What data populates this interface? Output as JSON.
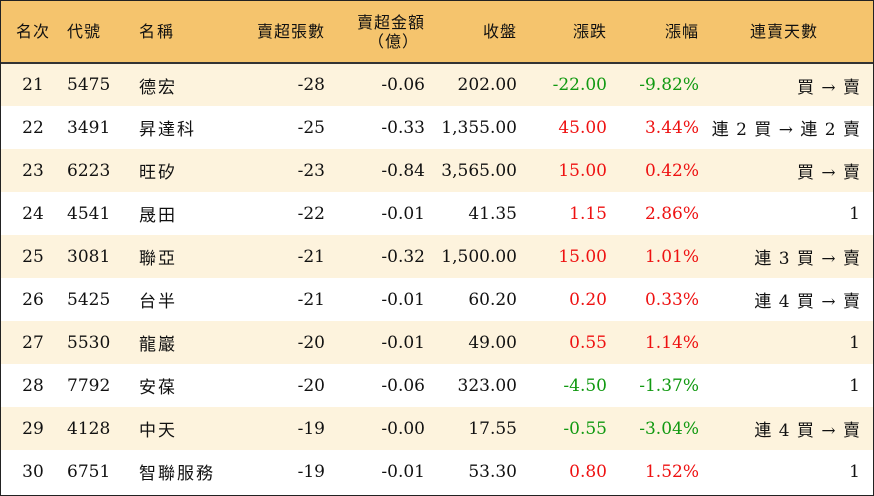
{
  "colors": {
    "header_bg": "#f5c46d",
    "row_alt_bg": "#fdf3dd",
    "up": "#ee1111",
    "down": "#119911",
    "text": "#111111"
  },
  "headers": {
    "rank": "名次",
    "code": "代號",
    "name": "名稱",
    "net_sell_lots": "賣超張數",
    "net_sell_amount_line1": "賣超金額",
    "net_sell_amount_line2": "（億）",
    "close": "收盤",
    "change": "漲跌",
    "change_pct": "漲幅",
    "consecutive": "連賣天數"
  },
  "rows": [
    {
      "rank": "21",
      "code": "5475",
      "name": "德宏",
      "lots": "-28",
      "amount": "-0.06",
      "close": "202.00",
      "change": "-22.00",
      "pct": "-9.82%",
      "dir": "down",
      "consecutive": "買 → 賣"
    },
    {
      "rank": "22",
      "code": "3491",
      "name": "昇達科",
      "lots": "-25",
      "amount": "-0.33",
      "close": "1,355.00",
      "change": "45.00",
      "pct": "3.44%",
      "dir": "up",
      "consecutive": "連 2 買 → 連 2 賣"
    },
    {
      "rank": "23",
      "code": "6223",
      "name": "旺矽",
      "lots": "-23",
      "amount": "-0.84",
      "close": "3,565.00",
      "change": "15.00",
      "pct": "0.42%",
      "dir": "up",
      "consecutive": "買 → 賣"
    },
    {
      "rank": "24",
      "code": "4541",
      "name": "晟田",
      "lots": "-22",
      "amount": "-0.01",
      "close": "41.35",
      "change": "1.15",
      "pct": "2.86%",
      "dir": "up",
      "consecutive": "1"
    },
    {
      "rank": "25",
      "code": "3081",
      "name": "聯亞",
      "lots": "-21",
      "amount": "-0.32",
      "close": "1,500.00",
      "change": "15.00",
      "pct": "1.01%",
      "dir": "up",
      "consecutive": "連 3 買 → 賣"
    },
    {
      "rank": "26",
      "code": "5425",
      "name": "台半",
      "lots": "-21",
      "amount": "-0.01",
      "close": "60.20",
      "change": "0.20",
      "pct": "0.33%",
      "dir": "up",
      "consecutive": "連 4 買 → 賣"
    },
    {
      "rank": "27",
      "code": "5530",
      "name": "龍巖",
      "lots": "-20",
      "amount": "-0.01",
      "close": "49.00",
      "change": "0.55",
      "pct": "1.14%",
      "dir": "up",
      "consecutive": "1"
    },
    {
      "rank": "28",
      "code": "7792",
      "name": "安葆",
      "lots": "-20",
      "amount": "-0.06",
      "close": "323.00",
      "change": "-4.50",
      "pct": "-1.37%",
      "dir": "down",
      "consecutive": "1"
    },
    {
      "rank": "29",
      "code": "4128",
      "name": "中天",
      "lots": "-19",
      "amount": "-0.00",
      "close": "17.55",
      "change": "-0.55",
      "pct": "-3.04%",
      "dir": "down",
      "consecutive": "連 4 買 → 賣"
    },
    {
      "rank": "30",
      "code": "6751",
      "name": "智聯服務",
      "lots": "-19",
      "amount": "-0.01",
      "close": "53.30",
      "change": "0.80",
      "pct": "1.52%",
      "dir": "up",
      "consecutive": "1"
    }
  ]
}
